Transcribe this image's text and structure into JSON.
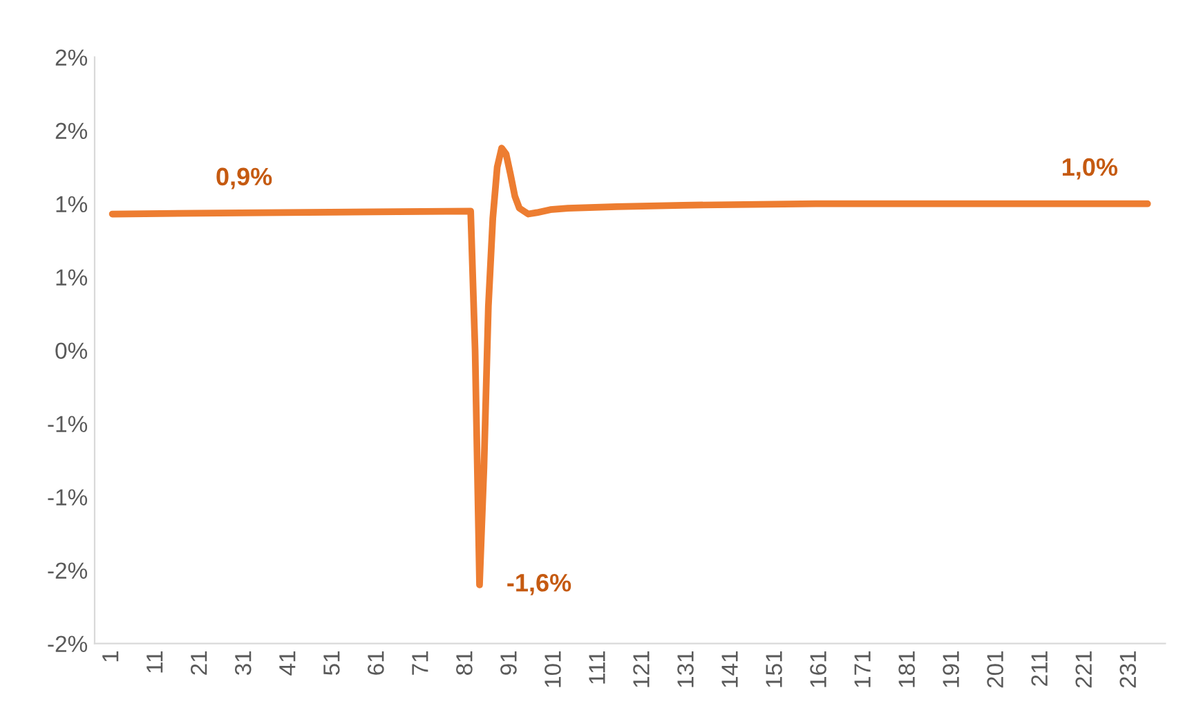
{
  "chart_data": {
    "type": "line",
    "x": [
      1,
      20,
      40,
      60,
      82,
      83,
      84,
      85,
      86,
      87,
      88,
      89,
      90,
      91,
      92,
      93,
      95,
      97,
      100,
      104,
      115,
      130,
      160,
      200,
      235
    ],
    "series": [
      {
        "color": "#ed7d31",
        "values": [
          0.93,
          0.935,
          0.94,
          0.945,
          0.95,
          0.0,
          -1.6,
          -0.8,
          0.3,
          0.9,
          1.25,
          1.38,
          1.34,
          1.2,
          1.05,
          0.97,
          0.93,
          0.94,
          0.96,
          0.97,
          0.98,
          0.99,
          1.0,
          1.0,
          1.0
        ]
      }
    ],
    "xlim": [
      -3,
      239
    ],
    "xticks": [
      1,
      11,
      21,
      31,
      41,
      51,
      61,
      71,
      81,
      91,
      101,
      111,
      121,
      131,
      141,
      151,
      161,
      171,
      181,
      191,
      201,
      211,
      221,
      231
    ],
    "ylim": [
      -2.0,
      2.0
    ],
    "yticks": [
      {
        "value": -2.0,
        "label": "-2%"
      },
      {
        "value": -1.5,
        "label": "-2%"
      },
      {
        "value": -1.0,
        "label": "-1%"
      },
      {
        "value": -0.5,
        "label": "-1%"
      },
      {
        "value": 0.0,
        "label": "0%"
      },
      {
        "value": 0.5,
        "label": "1%"
      },
      {
        "value": 1.0,
        "label": "1%"
      },
      {
        "value": 1.5,
        "label": "2%"
      },
      {
        "value": 2.0,
        "label": "2%"
      }
    ],
    "annotations": [
      {
        "text": "0,9%",
        "x": 20,
        "y": 0.935
      },
      {
        "text": "-1,6%",
        "x": 84,
        "y": -1.6
      },
      {
        "text": "1,0%",
        "x": 235,
        "y": 1.0
      }
    ],
    "grid": false,
    "legend": false,
    "line_style": "solid",
    "marker": "none"
  }
}
